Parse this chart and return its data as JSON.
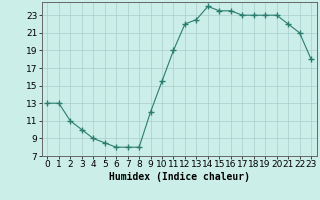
{
  "x": [
    0,
    1,
    2,
    3,
    4,
    5,
    6,
    7,
    8,
    9,
    10,
    11,
    12,
    13,
    14,
    15,
    16,
    17,
    18,
    19,
    20,
    21,
    22,
    23
  ],
  "y": [
    13,
    13,
    11,
    10,
    9,
    8.5,
    8,
    8,
    8,
    12,
    15.5,
    19,
    22,
    22.5,
    24,
    23.5,
    23.5,
    23,
    23,
    23,
    23,
    22,
    21,
    18
  ],
  "line_color": "#2a7d6e",
  "marker": "+",
  "marker_size": 4,
  "marker_linewidth": 1.0,
  "background_color": "#cceee8",
  "grid_color": "#aacccc",
  "xlabel": "Humidex (Indice chaleur)",
  "xlim": [
    -0.5,
    23.5
  ],
  "ylim": [
    7,
    24.5
  ],
  "yticks": [
    7,
    9,
    11,
    13,
    15,
    17,
    19,
    21,
    23
  ],
  "xticks": [
    0,
    1,
    2,
    3,
    4,
    5,
    6,
    7,
    8,
    9,
    10,
    11,
    12,
    13,
    14,
    15,
    16,
    17,
    18,
    19,
    20,
    21,
    22,
    23
  ],
  "label_fontsize": 7,
  "tick_fontsize": 6.5
}
